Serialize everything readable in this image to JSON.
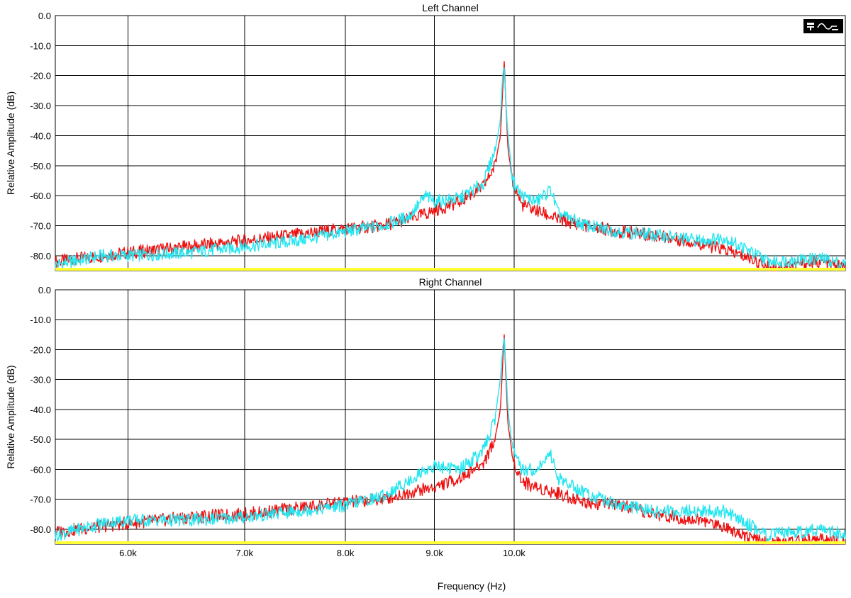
{
  "colors": {
    "red_series": "#ee1111",
    "cyan_series": "#22e6f0",
    "floor": "#ffff33",
    "grid": "#000000"
  },
  "toolbar": {
    "icon": "spectrum-display-icon",
    "glyph": "≤"
  },
  "xlabel": "Frequency (Hz)",
  "chart_data": [
    {
      "type": "line",
      "title": "Left Channel",
      "ylabel": "Relative Amplitude (dB)",
      "xlabel": "",
      "ylim": [
        -85,
        0
      ],
      "y_ticks": [
        "0.0",
        "-10.0",
        "-20.0",
        "-30.0",
        "-40.0",
        "-50.0",
        "-60.0",
        "-70.0",
        "-80.0"
      ],
      "x_ticks": [],
      "x_scale": "log",
      "xlim": [
        5450,
        15500
      ],
      "grid": true,
      "series": [
        {
          "color": "#ee1111",
          "x": [
            5450,
            5800,
            6000,
            6500,
            7000,
            7500,
            8000,
            8400,
            8800,
            9000,
            9300,
            9600,
            9750,
            9820,
            9850,
            9870,
            9890,
            9920,
            9980,
            10100,
            10300,
            10600,
            11000,
            11500,
            12000,
            12800,
            13200,
            13700,
            14000,
            15000,
            15500
          ],
          "y": [
            -82,
            -80,
            -79,
            -77,
            -75,
            -73,
            -71,
            -70,
            -67,
            -65,
            -62,
            -57,
            -50,
            -40,
            -25,
            -15,
            -28,
            -45,
            -55,
            -63,
            -65,
            -68,
            -70,
            -72,
            -73,
            -76,
            -78,
            -81,
            -84,
            -82,
            -84
          ]
        },
        {
          "color": "#22e6f0",
          "x": [
            5450,
            5800,
            6000,
            6500,
            7000,
            7500,
            8000,
            8400,
            8700,
            8900,
            9000,
            9300,
            9600,
            9750,
            9820,
            9850,
            9870,
            9890,
            9920,
            9980,
            10100,
            10300,
            10500,
            10600,
            11000,
            11500,
            12000,
            12800,
            13200,
            13500,
            14000,
            15000,
            15500
          ],
          "y": [
            -83,
            -80,
            -80,
            -79,
            -77,
            -75,
            -72,
            -70,
            -67,
            -60,
            -62,
            -61,
            -56,
            -45,
            -35,
            -20,
            -17,
            -28,
            -40,
            -55,
            -60,
            -62,
            -58,
            -66,
            -70,
            -72,
            -73,
            -75,
            -74,
            -77,
            -82,
            -81,
            -83
          ]
        },
        {
          "color": "#ffff33",
          "x": [
            5450,
            15500
          ],
          "y": [
            -85,
            -85
          ]
        }
      ]
    },
    {
      "type": "line",
      "title": "Right Channel",
      "ylabel": "Relative Amplitude (dB)",
      "xlabel": "Frequency (Hz)",
      "ylim": [
        -85,
        0
      ],
      "y_ticks": [
        "0.0",
        "-10.0",
        "-20.0",
        "-30.0",
        "-40.0",
        "-50.0",
        "-60.0",
        "-70.0",
        "-80.0"
      ],
      "x_ticks": [
        "6.0k",
        "7.0k",
        "8.0k",
        "9.0k",
        "10.0k"
      ],
      "x_scale": "log",
      "xlim": [
        5450,
        15500
      ],
      "grid": true,
      "series": [
        {
          "color": "#ee1111",
          "x": [
            5450,
            5800,
            6000,
            6500,
            7000,
            7500,
            8000,
            8400,
            8800,
            9000,
            9300,
            9600,
            9750,
            9820,
            9850,
            9870,
            9890,
            9920,
            9980,
            10100,
            10300,
            10600,
            11000,
            11500,
            12000,
            12800,
            13200,
            13700,
            14000,
            15000,
            15500
          ],
          "y": [
            -81,
            -79,
            -78,
            -76,
            -75,
            -73,
            -71,
            -70,
            -67,
            -66,
            -63,
            -58,
            -50,
            -40,
            -25,
            -15,
            -28,
            -45,
            -56,
            -64,
            -66,
            -68,
            -71,
            -72,
            -75,
            -77,
            -79,
            -83,
            -85,
            -83,
            -85
          ]
        },
        {
          "color": "#22e6f0",
          "x": [
            5450,
            5800,
            6000,
            6500,
            7000,
            7500,
            8000,
            8400,
            8700,
            8900,
            9000,
            9300,
            9600,
            9750,
            9820,
            9850,
            9870,
            9890,
            9920,
            9980,
            10100,
            10300,
            10500,
            10600,
            11000,
            11500,
            12000,
            12800,
            13200,
            13500,
            14000,
            15000,
            15500
          ],
          "y": [
            -82,
            -78,
            -77,
            -77,
            -76,
            -74,
            -72,
            -69,
            -64,
            -60,
            -59,
            -60,
            -54,
            -43,
            -30,
            -20,
            -16,
            -25,
            -40,
            -54,
            -60,
            -60,
            -55,
            -63,
            -68,
            -72,
            -74,
            -74,
            -74,
            -77,
            -82,
            -80,
            -82
          ]
        },
        {
          "color": "#ffff33",
          "x": [
            5450,
            15500
          ],
          "y": [
            -85,
            -85
          ]
        }
      ]
    }
  ]
}
